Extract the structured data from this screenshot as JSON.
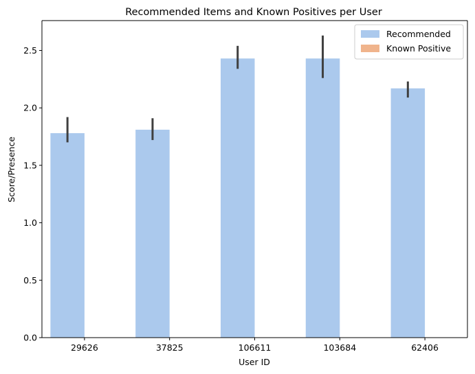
{
  "chart_data": {
    "type": "bar",
    "title": "Recommended Items and Known Positives per User",
    "xlabel": "User ID",
    "ylabel": "Score/Presence",
    "categories": [
      "29626",
      "37825",
      "106611",
      "103684",
      "62406"
    ],
    "series": [
      {
        "name": "Recommended",
        "color": "#abc9ed",
        "values": [
          1.78,
          1.81,
          2.43,
          2.43,
          2.17
        ],
        "error_low": [
          1.7,
          1.72,
          2.34,
          2.26,
          2.09
        ],
        "error_high": [
          1.92,
          1.91,
          2.54,
          2.63,
          2.23
        ]
      },
      {
        "name": "Known Positive",
        "color": "#f0b48c",
        "values": [
          0,
          0,
          0,
          0,
          0
        ]
      }
    ],
    "ylim": [
      0,
      2.76
    ],
    "yticks": [
      0.0,
      0.5,
      1.0,
      1.5,
      2.0,
      2.5
    ],
    "ytick_labels": [
      "0.0",
      "0.5",
      "1.0",
      "1.5",
      "2.0",
      "2.5"
    ],
    "error_color": "#3f3f3f",
    "grid": false,
    "legend_position": "top-right"
  }
}
